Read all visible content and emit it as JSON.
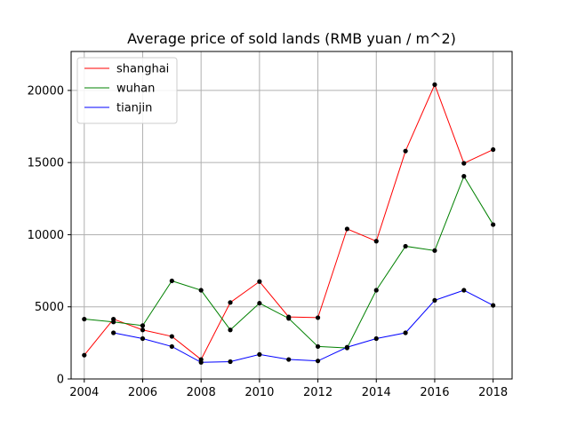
{
  "chart_data": {
    "type": "line",
    "title": "Average price of sold lands (RMB yuan / m^2)",
    "xlabel": "",
    "ylabel": "",
    "x": [
      2004,
      2005,
      2006,
      2007,
      2008,
      2009,
      2010,
      2011,
      2012,
      2013,
      2014,
      2015,
      2016,
      2017,
      2018
    ],
    "xlim": [
      2003.55,
      2018.65
    ],
    "ylim": [
      0,
      22700
    ],
    "xticks": [
      2004,
      2006,
      2008,
      2010,
      2012,
      2014,
      2016,
      2018
    ],
    "yticks": [
      0,
      5000,
      10000,
      15000,
      20000
    ],
    "grid": true,
    "legend_position": "top-left",
    "series": [
      {
        "name": "shanghai",
        "color": "#ff0000",
        "values": [
          1650,
          4150,
          3400,
          2950,
          1350,
          5300,
          6750,
          4300,
          4250,
          10400,
          9550,
          15800,
          20400,
          14950,
          15900
        ]
      },
      {
        "name": "wuhan",
        "color": "#008000",
        "values": [
          4150,
          3950,
          3700,
          6800,
          6150,
          3400,
          5250,
          4200,
          2250,
          2150,
          6150,
          9200,
          8900,
          14050,
          10700
        ]
      },
      {
        "name": "tianjin",
        "color": "#0000ff",
        "x": [
          2005,
          2006,
          2007,
          2008,
          2009,
          2010,
          2011,
          2012,
          2013,
          2014,
          2015,
          2016,
          2017,
          2018
        ],
        "values": [
          3200,
          2800,
          2250,
          1150,
          1200,
          1700,
          1350,
          1250,
          2200,
          2800,
          3200,
          5450,
          6150,
          5100
        ]
      }
    ]
  }
}
